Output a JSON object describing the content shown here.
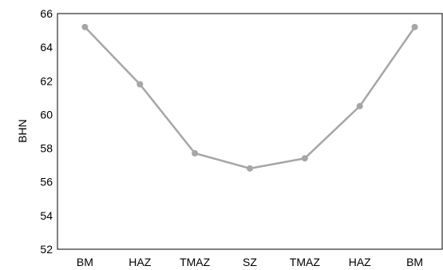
{
  "chart_data": {
    "type": "line",
    "title": "",
    "xlabel": "",
    "ylabel": "BHN",
    "categories": [
      "BM",
      "HAZ",
      "TMAZ",
      "SZ",
      "TMAZ",
      "HAZ",
      "BM"
    ],
    "y_ticks": [
      "52",
      "54",
      "56",
      "58",
      "60",
      "62",
      "64",
      "66"
    ],
    "ylim": [
      52,
      66
    ],
    "grid": false,
    "legend": "none",
    "series": [
      {
        "values": [
          65.2,
          61.8,
          57.7,
          56.8,
          57.4,
          60.5,
          65.2
        ],
        "color": "#a6a6a6",
        "marker": "circle"
      }
    ]
  }
}
